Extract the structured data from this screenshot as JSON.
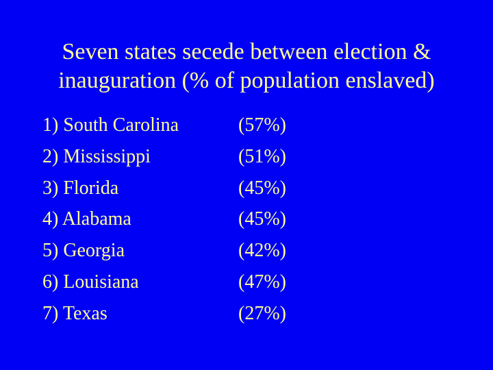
{
  "slide": {
    "title_line1": "Seven states secede between election &",
    "title_line2": "inauguration (% of population enslaved)",
    "background_color": "#0000f5",
    "text_color": "#ffff99",
    "items": [
      {
        "label": "1) South Carolina",
        "percent": "(57%)"
      },
      {
        "label": "2) Mississippi",
        "percent": "(51%)"
      },
      {
        "label": "3) Florida",
        "percent": "(45%)"
      },
      {
        "label": "4) Alabama",
        "percent": "(45%)"
      },
      {
        "label": "5) Georgia",
        "percent": "(42%)"
      },
      {
        "label": "6) Louisiana",
        "percent": "(47%)"
      },
      {
        "label": "7) Texas",
        "percent": "(27%)"
      }
    ]
  }
}
